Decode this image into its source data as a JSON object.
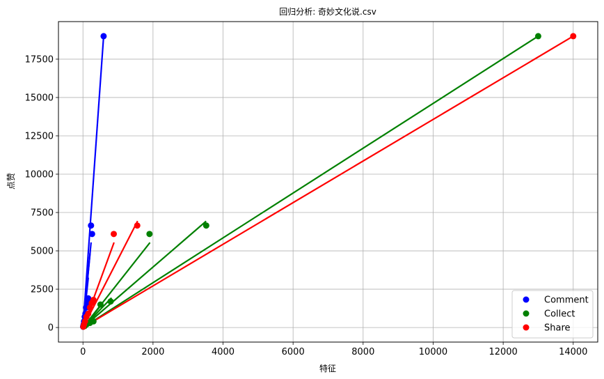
{
  "chart_data": {
    "type": "scatter",
    "title": "回归分析: 奇妙文化说.csv",
    "xlabel": "特征",
    "ylabel": "点赞",
    "xlim": [
      -700,
      14700
    ],
    "ylim": [
      -950,
      19950
    ],
    "xticks": [
      0,
      2000,
      4000,
      6000,
      8000,
      10000,
      12000,
      14000
    ],
    "yticks": [
      0,
      2500,
      5000,
      7500,
      10000,
      12500,
      15000,
      17500
    ],
    "grid": true,
    "legend_position": "bottom-right",
    "series": [
      {
        "name": "Comment",
        "color": "#0000ff",
        "points": [
          [
            590,
            19000
          ],
          [
            230,
            6650
          ],
          [
            260,
            6100
          ],
          [
            150,
            1900
          ],
          [
            120,
            1600
          ],
          [
            90,
            1300
          ],
          [
            70,
            900
          ],
          [
            50,
            700
          ],
          [
            30,
            400
          ],
          [
            20,
            200
          ],
          [
            10,
            100
          ],
          [
            5,
            50
          ]
        ],
        "lines": [
          [
            [
              0,
              0
            ],
            [
              590,
              19000
            ]
          ],
          [
            [
              0,
              0
            ],
            [
              230,
              5500
            ]
          ],
          [
            [
              0,
              0
            ],
            [
              200,
              4800
            ]
          ],
          [
            [
              0,
              0
            ],
            [
              150,
              3200
            ]
          ],
          [
            [
              0,
              0
            ],
            [
              100,
              2000
            ]
          ],
          [
            [
              0,
              0
            ],
            [
              70,
              1300
            ]
          ]
        ]
      },
      {
        "name": "Collect",
        "color": "#008000",
        "points": [
          [
            13000,
            19000
          ],
          [
            3520,
            6650
          ],
          [
            1900,
            6100
          ],
          [
            790,
            1700
          ],
          [
            500,
            1500
          ],
          [
            300,
            400
          ],
          [
            200,
            300
          ],
          [
            100,
            200
          ],
          [
            50,
            100
          ]
        ],
        "lines": [
          [
            [
              0,
              0
            ],
            [
              13000,
              19000
            ]
          ],
          [
            [
              0,
              0
            ],
            [
              3500,
              6900
            ]
          ],
          [
            [
              0,
              0
            ],
            [
              1900,
              5500
            ]
          ],
          [
            [
              0,
              0
            ],
            [
              800,
              1900
            ]
          ],
          [
            [
              0,
              0
            ],
            [
              500,
              1400
            ]
          ],
          [
            [
              0,
              0
            ],
            [
              300,
              700
            ]
          ]
        ]
      },
      {
        "name": "Share",
        "color": "#ff0000",
        "points": [
          [
            14000,
            19000
          ],
          [
            1550,
            6650
          ],
          [
            880,
            6100
          ],
          [
            300,
            1800
          ],
          [
            250,
            1600
          ],
          [
            200,
            1300
          ],
          [
            150,
            900
          ],
          [
            100,
            700
          ],
          [
            60,
            400
          ],
          [
            30,
            200
          ],
          [
            10,
            50
          ]
        ],
        "lines": [
          [
            [
              0,
              0
            ],
            [
              14000,
              19000
            ]
          ],
          [
            [
              0,
              0
            ],
            [
              1550,
              6900
            ]
          ],
          [
            [
              0,
              0
            ],
            [
              880,
              5500
            ]
          ],
          [
            [
              0,
              0
            ],
            [
              300,
              1900
            ]
          ],
          [
            [
              0,
              0
            ],
            [
              250,
              1500
            ]
          ],
          [
            [
              0,
              0
            ],
            [
              200,
              1100
            ]
          ]
        ]
      }
    ]
  }
}
